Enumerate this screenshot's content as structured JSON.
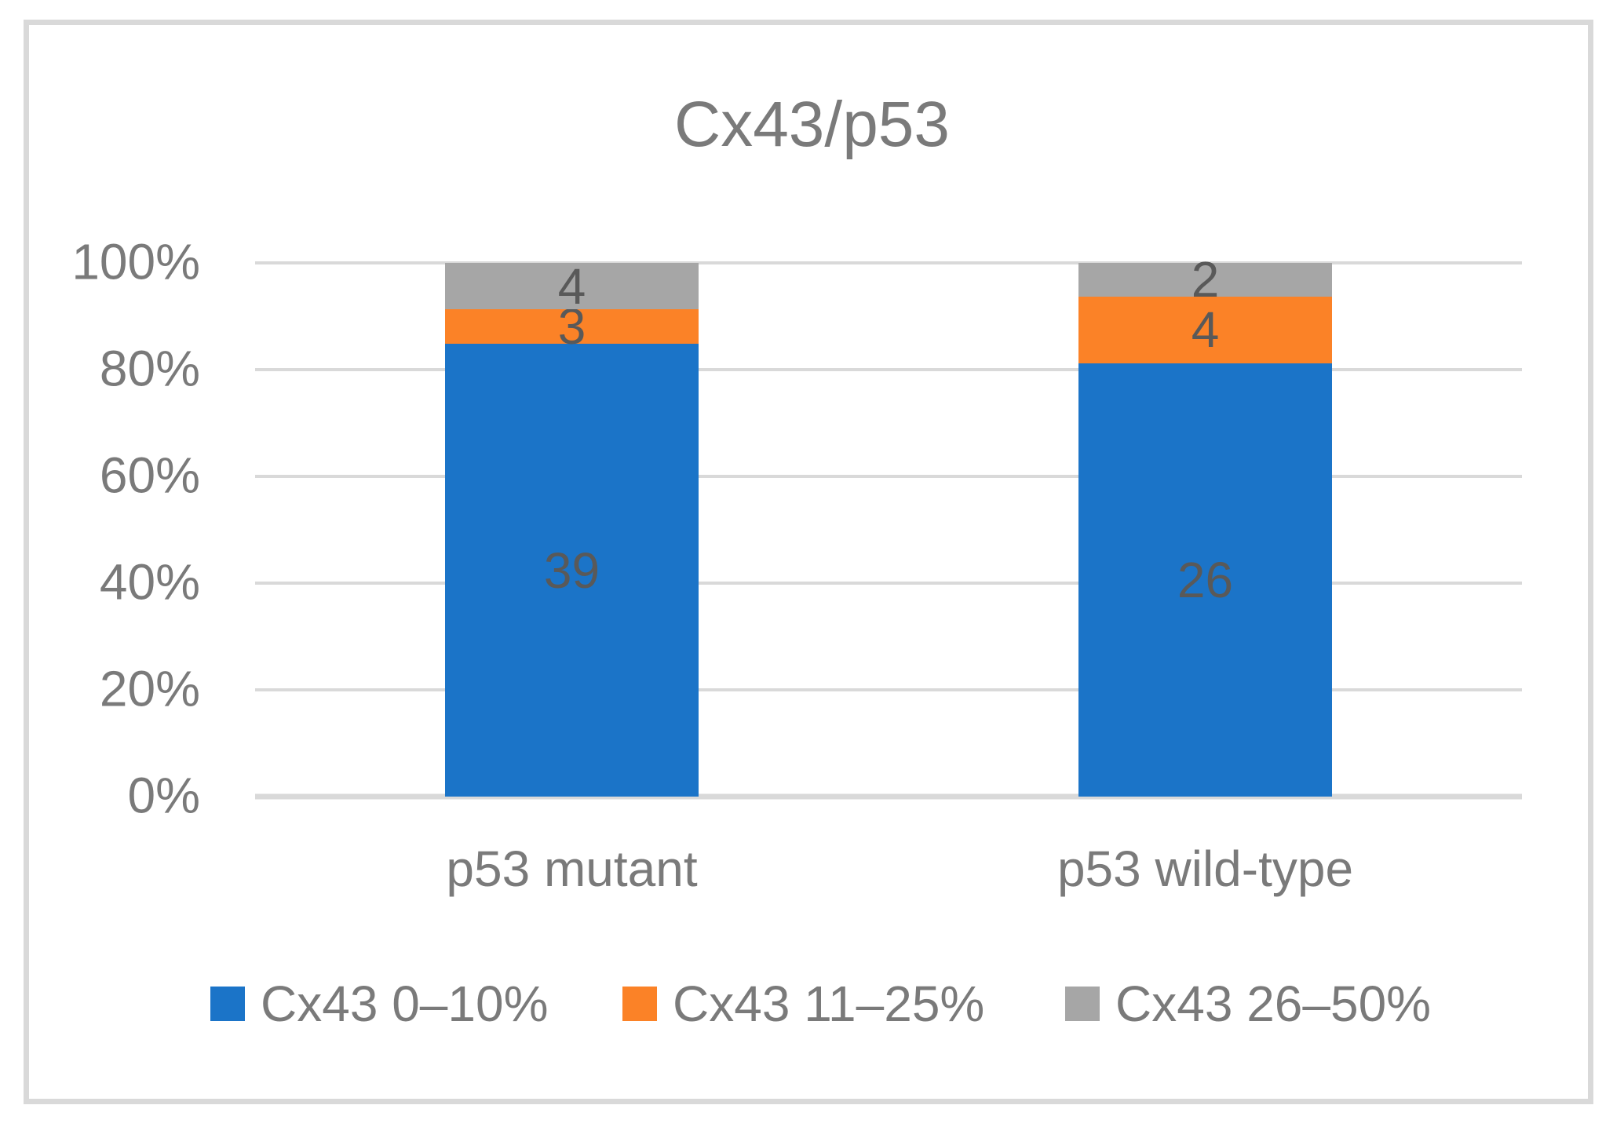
{
  "chart_data": {
    "type": "bar",
    "variant": "100-percent-stacked-column",
    "title": "Cx43/p53",
    "categories": [
      "p53 mutant",
      "p53 wild-type"
    ],
    "series": [
      {
        "name": "Cx43 0–10%",
        "color": "#1b74c8",
        "values": [
          39,
          26
        ]
      },
      {
        "name": "Cx43 11–25%",
        "color": "#fb8227",
        "values": [
          3,
          4
        ]
      },
      {
        "name": "Cx43 26–50%",
        "color": "#a6a6a6",
        "values": [
          4,
          2
        ]
      }
    ],
    "y_ticks": [
      "0%",
      "20%",
      "40%",
      "60%",
      "80%",
      "100%"
    ],
    "ylim": [
      0,
      1
    ],
    "xlabel": "",
    "ylabel": "",
    "grid": true,
    "legend_position": "bottom",
    "style": {
      "title_color": "#7a7a7a",
      "axis_text_color": "#7a7a7a",
      "data_label_color": "#595959",
      "gridline_color": "#d9d9d9",
      "frame_color": "#d9d9d9",
      "background": "#ffffff"
    }
  }
}
